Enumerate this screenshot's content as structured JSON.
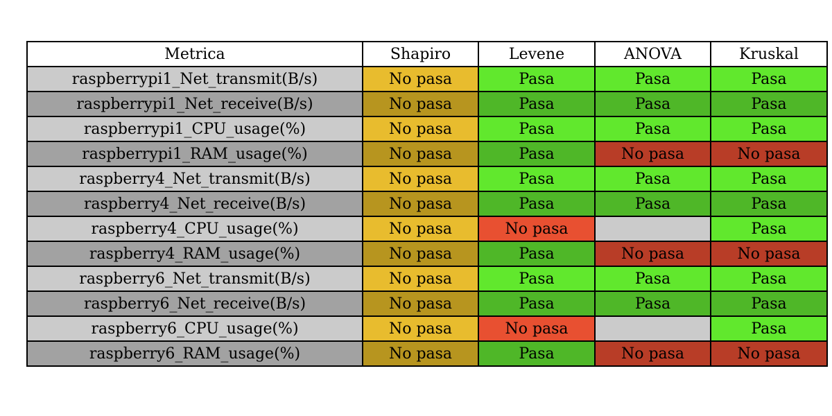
{
  "table": {
    "headers": [
      "Metrica",
      "Shapiro",
      "Levene",
      "ANOVA",
      "Kruskal"
    ],
    "rows": [
      [
        "raspberrypi1_Net_transmit(B/s)",
        "No pasa",
        "Pasa",
        "Pasa",
        "Pasa"
      ],
      [
        "raspberrypi1_Net_receive(B/s)",
        "No pasa",
        "Pasa",
        "Pasa",
        "Pasa"
      ],
      [
        "raspberrypi1_CPU_usage(%)",
        "No pasa",
        "Pasa",
        "Pasa",
        "Pasa"
      ],
      [
        "raspberrypi1_RAM_usage(%)",
        "No pasa",
        "Pasa",
        "No pasa",
        "No pasa"
      ],
      [
        "raspberry4_Net_transmit(B/s)",
        "No pasa",
        "Pasa",
        "Pasa",
        "Pasa"
      ],
      [
        "raspberry4_Net_receive(B/s)",
        "No pasa",
        "Pasa",
        "Pasa",
        "Pasa"
      ],
      [
        "raspberry4_CPU_usage(%)",
        "No pasa",
        "No pasa",
        "",
        "Pasa"
      ],
      [
        "raspberry4_RAM_usage(%)",
        "No pasa",
        "Pasa",
        "No pasa",
        "No pasa"
      ],
      [
        "raspberry6_Net_transmit(B/s)",
        "No pasa",
        "Pasa",
        "Pasa",
        "Pasa"
      ],
      [
        "raspberry6_Net_receive(B/s)",
        "No pasa",
        "Pasa",
        "Pasa",
        "Pasa"
      ],
      [
        "raspberry6_CPU_usage(%)",
        "No pasa",
        "No pasa",
        "",
        "Pasa"
      ],
      [
        "raspberry6_RAM_usage(%)",
        "No pasa",
        "Pasa",
        "No pasa",
        "No pasa"
      ]
    ]
  },
  "colors": {
    "header_bg": "#ffffff",
    "metric_light": "#cbcbcb",
    "metric_dark": "#a2a2a2",
    "empty_cell": "#cbcbcb",
    "shapiro_fail_light": "#e8bc2e",
    "shapiro_fail_dark": "#b7951f",
    "pass_light": "#61e82d",
    "pass_dark": "#4fb728",
    "fail_light": "#e85031",
    "fail_dark": "#b83d27"
  },
  "chart_data": {
    "type": "table",
    "columns": [
      "Metrica",
      "Shapiro",
      "Levene",
      "ANOVA",
      "Kruskal"
    ],
    "rows": [
      [
        "raspberrypi1_Net_transmit(B/s)",
        "No pasa",
        "Pasa",
        "Pasa",
        "Pasa"
      ],
      [
        "raspberrypi1_Net_receive(B/s)",
        "No pasa",
        "Pasa",
        "Pasa",
        "Pasa"
      ],
      [
        "raspberrypi1_CPU_usage(%)",
        "No pasa",
        "Pasa",
        "Pasa",
        "Pasa"
      ],
      [
        "raspberrypi1_RAM_usage(%)",
        "No pasa",
        "Pasa",
        "No pasa",
        "No pasa"
      ],
      [
        "raspberry4_Net_transmit(B/s)",
        "No pasa",
        "Pasa",
        "Pasa",
        "Pasa"
      ],
      [
        "raspberry4_Net_receive(B/s)",
        "No pasa",
        "Pasa",
        "Pasa",
        "Pasa"
      ],
      [
        "raspberry4_CPU_usage(%)",
        "No pasa",
        "No pasa",
        "",
        "Pasa"
      ],
      [
        "raspberry4_RAM_usage(%)",
        "No pasa",
        "Pasa",
        "No pasa",
        "No pasa"
      ],
      [
        "raspberry6_Net_transmit(B/s)",
        "No pasa",
        "Pasa",
        "Pasa",
        "Pasa"
      ],
      [
        "raspberry6_Net_receive(B/s)",
        "No pasa",
        "Pasa",
        "Pasa",
        "Pasa"
      ],
      [
        "raspberry6_CPU_usage(%)",
        "No pasa",
        "No pasa",
        "",
        "Pasa"
      ],
      [
        "raspberry6_RAM_usage(%)",
        "No pasa",
        "Pasa",
        "No pasa",
        "No pasa"
      ]
    ]
  }
}
